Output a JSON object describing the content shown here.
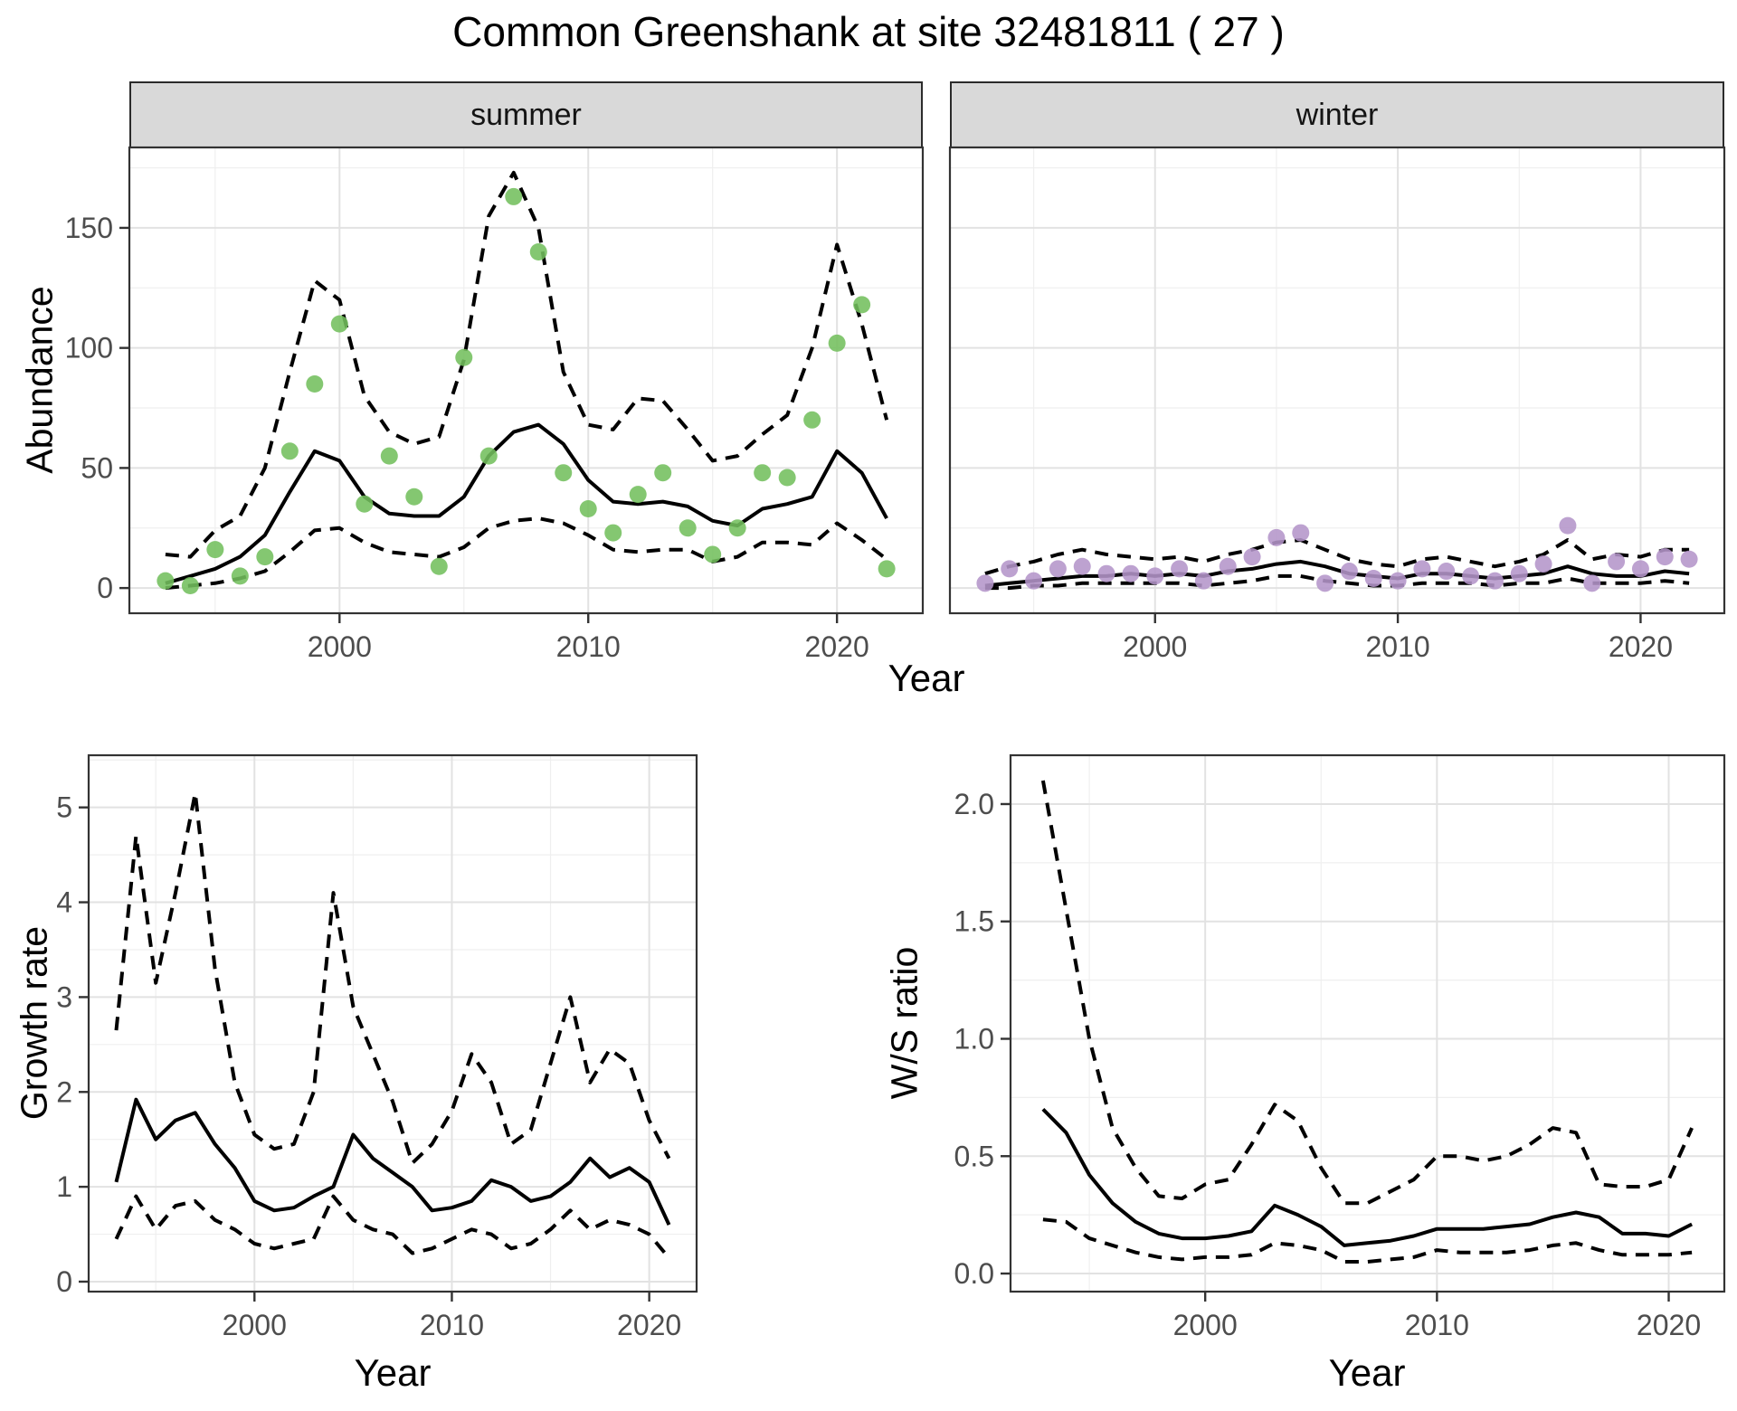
{
  "figure": {
    "title": "Common Greenshank at site 32481811 ( 27 )",
    "abundance_ylabel": "Abundance",
    "growth_ylabel": "Growth rate",
    "ws_ylabel": "W/S ratio",
    "top_xlabel": "Year",
    "bottom_left_xlabel": "Year",
    "bottom_right_xlabel": "Year",
    "facet_labels": {
      "summer": "summer",
      "winter": "winter"
    }
  },
  "colors": {
    "summer_point": "#73bf5d",
    "winter_point": "#b495c9",
    "line": "#000000",
    "strip_bg": "#d9d9d9",
    "panel_bg": "#ffffff",
    "grid_major": "#e2e2e2",
    "grid_minor": "#efefef",
    "border": "#333333",
    "tick_text": "#4d4d4d"
  },
  "chart_data": [
    {
      "id": "abundance-summer",
      "type": "line",
      "facet": "summer",
      "title": "",
      "xlabel": "Year",
      "ylabel": "Abundance",
      "grid": true,
      "legend": "none",
      "xlim": [
        1991.55,
        2023.45
      ],
      "ylim": [
        -10.5,
        183.5
      ],
      "xticks": {
        "major": [
          2000,
          2010,
          2020
        ],
        "minor": [
          1995,
          2005,
          2015
        ],
        "labels": [
          "2000",
          "2010",
          "2020"
        ]
      },
      "yticks": {
        "major": [
          0,
          50,
          100,
          150
        ],
        "minor": [
          25,
          75,
          125,
          175
        ],
        "labels": [
          "0",
          "50",
          "100",
          "150"
        ]
      },
      "x": [
        1993,
        1994,
        1995,
        1996,
        1997,
        1998,
        1999,
        2000,
        2001,
        2002,
        2003,
        2004,
        2005,
        2006,
        2007,
        2008,
        2009,
        2010,
        2011,
        2012,
        2013,
        2014,
        2015,
        2016,
        2017,
        2018,
        2019,
        2020,
        2021,
        2022
      ],
      "series": [
        {
          "name": "upper-95ci",
          "style": "dashed",
          "values": [
            14,
            13,
            24,
            30,
            50,
            90,
            128,
            120,
            80,
            65,
            60,
            63,
            95,
            155,
            173,
            150,
            90,
            68,
            66,
            79,
            78,
            66,
            53,
            55,
            64,
            72,
            100,
            143,
            110,
            70
          ]
        },
        {
          "name": "lower-95ci",
          "style": "dashed",
          "values": [
            0,
            1,
            2,
            4,
            7,
            15,
            24,
            25,
            19,
            15,
            14,
            13,
            17,
            25,
            28,
            29,
            27,
            22,
            16,
            15,
            16,
            16,
            11,
            13,
            19,
            19,
            18,
            27,
            20,
            12
          ]
        },
        {
          "name": "modelled-mean",
          "style": "solid",
          "values": [
            2,
            5,
            8,
            13,
            22,
            40,
            57,
            53,
            38,
            31,
            30,
            30,
            38,
            55,
            65,
            68,
            60,
            45,
            36,
            35,
            36,
            34,
            28,
            26,
            33,
            35,
            38,
            57,
            48,
            29
          ]
        },
        {
          "name": "observed-counts",
          "style": "points",
          "color": "#73bf5d",
          "values": [
            3,
            1,
            16,
            5,
            13,
            57,
            85,
            110,
            35,
            55,
            38,
            9,
            96,
            55,
            163,
            140,
            48,
            33,
            23,
            39,
            48,
            25,
            14,
            25,
            48,
            46,
            70,
            102,
            118,
            8
          ]
        }
      ]
    },
    {
      "id": "abundance-winter",
      "type": "line",
      "facet": "winter",
      "title": "",
      "xlabel": "Year",
      "ylabel": "Abundance",
      "grid": true,
      "legend": "none",
      "xlim": [
        1991.55,
        2023.45
      ],
      "ylim": [
        -10.5,
        183.5
      ],
      "xticks": {
        "major": [
          2000,
          2010,
          2020
        ],
        "minor": [
          1995,
          2005,
          2015
        ],
        "labels": [
          "2000",
          "2010",
          "2020"
        ]
      },
      "yticks": {
        "major": [
          0,
          50,
          100,
          150
        ],
        "minor": [
          25,
          75,
          125,
          175
        ],
        "labels": [
          "0",
          "50",
          "100",
          "150"
        ]
      },
      "x": [
        1993,
        1994,
        1995,
        1996,
        1997,
        1998,
        1999,
        2000,
        2001,
        2002,
        2003,
        2004,
        2005,
        2006,
        2007,
        2008,
        2009,
        2010,
        2011,
        2012,
        2013,
        2014,
        2015,
        2016,
        2017,
        2018,
        2019,
        2020,
        2021,
        2022
      ],
      "series": [
        {
          "name": "upper-95ci",
          "style": "dashed",
          "values": [
            6,
            9,
            11,
            14,
            16,
            14,
            13,
            12,
            13,
            11,
            14,
            16,
            19,
            20,
            16,
            12,
            10,
            9,
            12,
            13,
            11,
            9,
            11,
            14,
            20,
            12,
            14,
            13,
            16,
            16
          ]
        },
        {
          "name": "lower-95ci",
          "style": "dashed",
          "values": [
            0,
            0,
            1,
            1,
            2,
            2,
            2,
            2,
            2,
            1,
            2,
            3,
            5,
            5,
            3,
            2,
            1,
            1,
            2,
            2,
            2,
            1,
            2,
            2,
            4,
            2,
            2,
            2,
            3,
            2
          ]
        },
        {
          "name": "modelled-mean",
          "style": "solid",
          "values": [
            1,
            2,
            3,
            4,
            5,
            5,
            6,
            5,
            6,
            5,
            7,
            8,
            10,
            11,
            9,
            6,
            5,
            4,
            6,
            6,
            5,
            4,
            5,
            6,
            9,
            6,
            5,
            5,
            7,
            6
          ]
        },
        {
          "name": "observed-counts",
          "style": "points",
          "color": "#b495c9",
          "values": [
            2,
            8,
            3,
            8,
            9,
            6,
            6,
            5,
            8,
            3,
            9,
            13,
            21,
            23,
            2,
            7,
            4,
            3,
            8,
            7,
            5,
            3,
            6,
            10,
            26,
            2,
            11,
            8,
            13,
            12
          ]
        }
      ]
    },
    {
      "id": "growth-rate",
      "type": "line",
      "facet": "",
      "title": "",
      "xlabel": "Year",
      "ylabel": "Growth rate",
      "grid": true,
      "legend": "none",
      "xlim": [
        1991.6,
        2022.4
      ],
      "ylim": [
        -0.105,
        5.55
      ],
      "xticks": {
        "major": [
          2000,
          2010,
          2020
        ],
        "minor": [
          1995,
          2005,
          2015
        ],
        "labels": [
          "2000",
          "2010",
          "2020"
        ]
      },
      "yticks": {
        "major": [
          0,
          1,
          2,
          3,
          4,
          5
        ],
        "minor": [
          0.5,
          1.5,
          2.5,
          3.5,
          4.5,
          5.5
        ],
        "labels": [
          "0",
          "1",
          "2",
          "3",
          "4",
          "5"
        ]
      },
      "x": [
        1993,
        1994,
        1995,
        1996,
        1997,
        1998,
        1999,
        2000,
        2001,
        2002,
        2003,
        2004,
        2005,
        2006,
        2007,
        2008,
        2009,
        2010,
        2011,
        2012,
        2013,
        2014,
        2015,
        2016,
        2017,
        2018,
        2019,
        2020,
        2021
      ],
      "series": [
        {
          "name": "upper-95ci",
          "style": "dashed",
          "values": [
            2.65,
            4.7,
            3.15,
            4.1,
            5.15,
            3.3,
            2.1,
            1.55,
            1.4,
            1.45,
            2.0,
            4.1,
            2.9,
            2.4,
            1.9,
            1.25,
            1.45,
            1.8,
            2.4,
            2.1,
            1.45,
            1.6,
            2.3,
            3.0,
            2.1,
            2.45,
            2.3,
            1.7,
            1.3
          ]
        },
        {
          "name": "lower-95ci",
          "style": "dashed",
          "values": [
            0.45,
            0.9,
            0.55,
            0.8,
            0.85,
            0.65,
            0.55,
            0.4,
            0.35,
            0.4,
            0.45,
            0.9,
            0.65,
            0.55,
            0.5,
            0.3,
            0.35,
            0.45,
            0.55,
            0.5,
            0.35,
            0.4,
            0.55,
            0.75,
            0.55,
            0.65,
            0.6,
            0.5,
            0.25
          ]
        },
        {
          "name": "modelled-mean",
          "style": "solid",
          "values": [
            1.05,
            1.92,
            1.5,
            1.7,
            1.78,
            1.45,
            1.2,
            0.85,
            0.75,
            0.78,
            0.9,
            1.0,
            1.55,
            1.3,
            1.15,
            1.0,
            0.75,
            0.78,
            0.85,
            1.07,
            1.0,
            0.85,
            0.9,
            1.05,
            1.3,
            1.1,
            1.2,
            1.05,
            0.6
          ]
        }
      ]
    },
    {
      "id": "ws-ratio",
      "type": "line",
      "facet": "",
      "title": "",
      "xlabel": "Year",
      "ylabel": "W/S ratio",
      "grid": true,
      "legend": "none",
      "xlim": [
        1991.6,
        2022.4
      ],
      "ylim": [
        -0.077,
        2.208
      ],
      "xticks": {
        "major": [
          2000,
          2010,
          2020
        ],
        "minor": [
          1995,
          2005,
          2015
        ],
        "labels": [
          "2000",
          "2010",
          "2020"
        ]
      },
      "yticks": {
        "major": [
          0,
          0.5,
          1.0,
          1.5,
          2.0
        ],
        "minor": [
          0.25,
          0.75,
          1.25,
          1.75
        ],
        "labels": [
          "0.0",
          "0.5",
          "1.0",
          "1.5",
          "2.0"
        ]
      },
      "x": [
        1993,
        1994,
        1995,
        1996,
        1997,
        1998,
        1999,
        2000,
        2001,
        2002,
        2003,
        2004,
        2005,
        2006,
        2007,
        2008,
        2009,
        2010,
        2011,
        2012,
        2013,
        2014,
        2015,
        2016,
        2017,
        2018,
        2019,
        2020,
        2021
      ],
      "series": [
        {
          "name": "upper-95ci",
          "style": "dashed",
          "values": [
            2.1,
            1.55,
            1.0,
            0.62,
            0.45,
            0.33,
            0.32,
            0.38,
            0.4,
            0.55,
            0.72,
            0.65,
            0.45,
            0.3,
            0.3,
            0.35,
            0.4,
            0.5,
            0.5,
            0.48,
            0.5,
            0.55,
            0.62,
            0.6,
            0.38,
            0.37,
            0.37,
            0.4,
            0.62
          ]
        },
        {
          "name": "lower-95ci",
          "style": "dashed",
          "values": [
            0.23,
            0.22,
            0.15,
            0.12,
            0.09,
            0.07,
            0.06,
            0.07,
            0.07,
            0.08,
            0.13,
            0.12,
            0.1,
            0.05,
            0.05,
            0.06,
            0.07,
            0.1,
            0.09,
            0.09,
            0.09,
            0.1,
            0.12,
            0.13,
            0.1,
            0.08,
            0.08,
            0.08,
            0.09
          ]
        },
        {
          "name": "modelled-mean",
          "style": "solid",
          "values": [
            0.7,
            0.6,
            0.42,
            0.3,
            0.22,
            0.17,
            0.15,
            0.15,
            0.16,
            0.18,
            0.29,
            0.25,
            0.2,
            0.12,
            0.13,
            0.14,
            0.16,
            0.19,
            0.19,
            0.19,
            0.2,
            0.21,
            0.24,
            0.26,
            0.24,
            0.17,
            0.17,
            0.16,
            0.21
          ]
        }
      ]
    }
  ]
}
